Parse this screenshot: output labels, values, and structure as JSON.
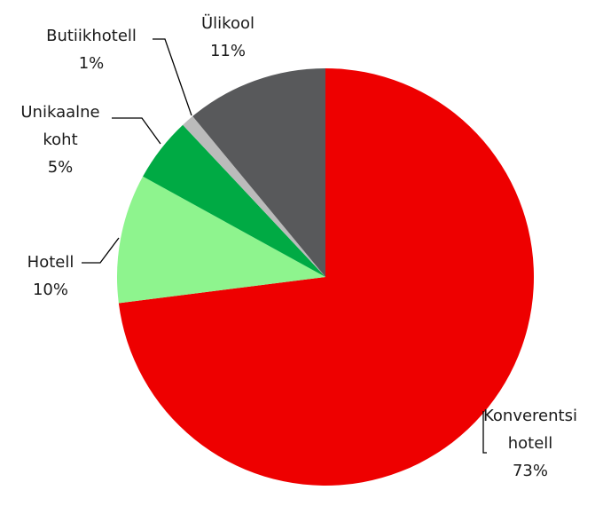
{
  "chart_data": {
    "type": "pie",
    "categories": [
      "Konverentsi hotell",
      "Hotell",
      "Unikaalne koht",
      "Butiikhotell",
      "Ülikool"
    ],
    "values": [
      73,
      10,
      5,
      1,
      11
    ],
    "value_labels": [
      "73%",
      "10%",
      "5%",
      "1%",
      "11%"
    ],
    "colors": [
      "#ee0000",
      "#8ef48e",
      "#00aa44",
      "#bbbbbb",
      "#58595b"
    ]
  }
}
